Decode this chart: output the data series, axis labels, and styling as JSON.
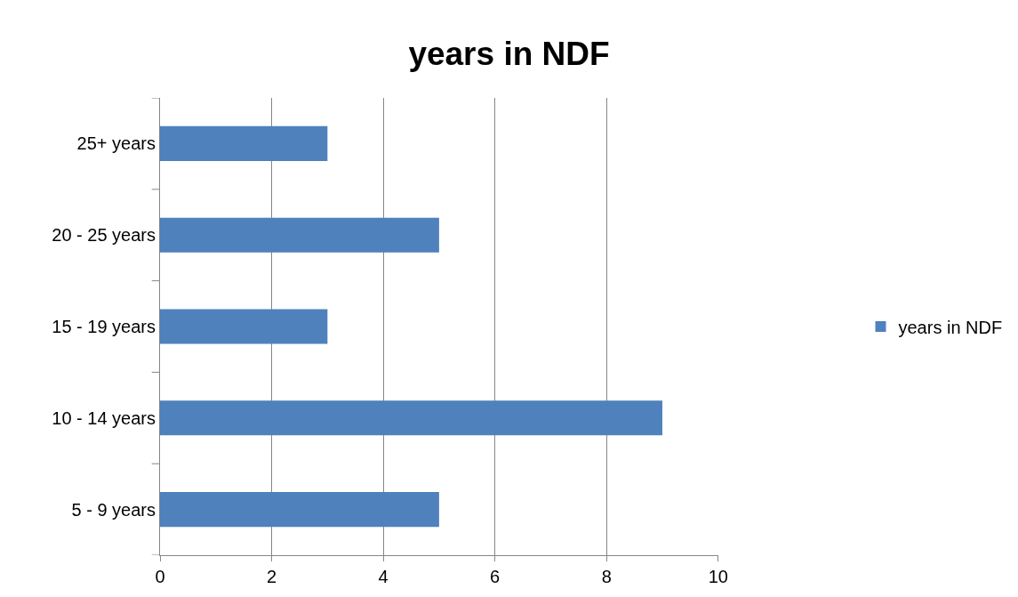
{
  "chart_data": {
    "type": "bar",
    "title": "years in NDF",
    "orientation": "horizontal",
    "categories": [
      "25+ years",
      "20 - 25 years",
      "15 - 19 years",
      "10 - 14 years",
      "5 - 9 years"
    ],
    "series": [
      {
        "name": "years in NDF",
        "color": "#4f81bd",
        "values": [
          3,
          5,
          3,
          9,
          5
        ]
      }
    ],
    "xlim": [
      0,
      10
    ],
    "xticks": [
      0,
      2,
      4,
      6,
      8,
      10
    ],
    "grid": "x",
    "legend": "right"
  }
}
